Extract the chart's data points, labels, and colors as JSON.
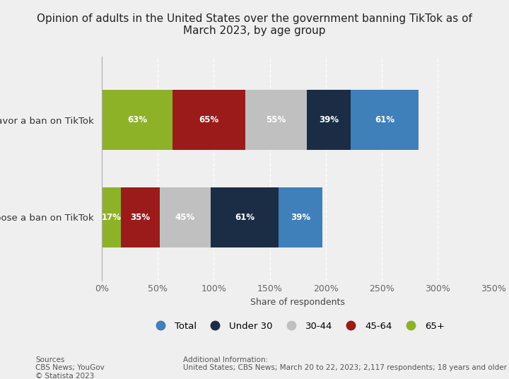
{
  "title": "Opinion of adults in the United States over the government banning TikTok as of\nMarch 2023, by age group",
  "categories": [
    "Favor a ban on TikTok",
    "Oppose a ban on TikTok"
  ],
  "series": {
    "65+": [
      63,
      17
    ],
    "45-64": [
      65,
      35
    ],
    "30-44": [
      55,
      45
    ],
    "Under 30": [
      39,
      61
    ],
    "Total": [
      61,
      39
    ]
  },
  "colors": {
    "65+": "#8db228",
    "45-64": "#9b1b1b",
    "30-44": "#c0c0c0",
    "Under 30": "#1a2d44",
    "Total": "#3f7fba"
  },
  "xlabel": "Share of respondents",
  "xlim": [
    0,
    350
  ],
  "xticks": [
    0,
    50,
    100,
    150,
    200,
    250,
    300,
    350
  ],
  "xticklabels": [
    "0%",
    "50%",
    "100%",
    "150%",
    "200%",
    "250%",
    "300%",
    "350%"
  ],
  "bar_height": 0.62,
  "bar_gap": 0.5,
  "background_color": "#efefef",
  "legend_order": [
    "Total",
    "Under 30",
    "30-44",
    "45-64",
    "65+"
  ],
  "sources_text": "Sources\nCBS News; YouGov\n© Statista 2023",
  "additional_text": "Additional Information:\nUnited States; CBS News; March 20 to 22, 2023; 2,117 respondents; 18 years and older",
  "stack_order": [
    "65+",
    "45-64",
    "30-44",
    "Under 30",
    "Total"
  ]
}
